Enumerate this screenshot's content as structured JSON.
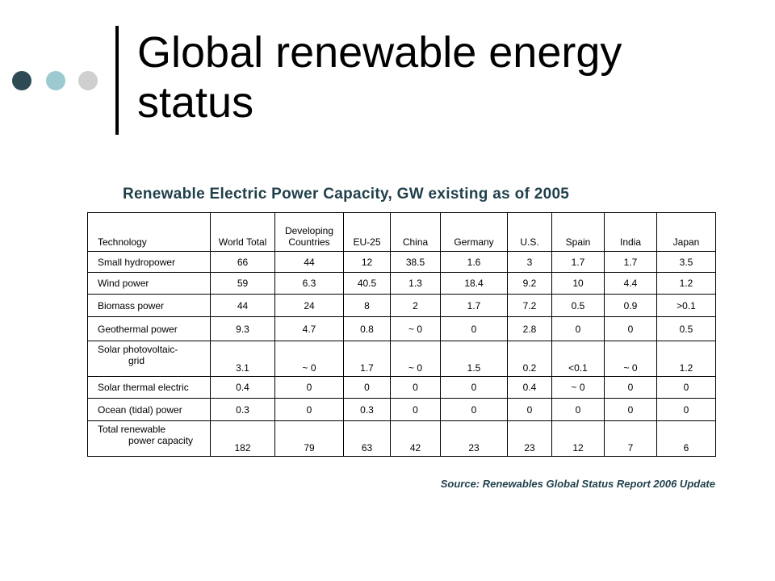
{
  "colors": {
    "dot1": "#2e4b55",
    "dot2": "#9dc9d0",
    "dot3": "#cfcfcf",
    "accent_text": "#1f3f4a"
  },
  "title": "Global renewable energy status",
  "subtitle": "Renewable Electric Power Capacity, GW existing as of 2005",
  "table": {
    "headers": [
      "Technology",
      "World Total",
      "Developing Countries",
      "EU-25",
      "China",
      "Germany",
      "U.S.",
      "Spain",
      "India",
      "Japan"
    ],
    "rows": [
      {
        "tech": "Small hydropower",
        "values": [
          "66",
          "44",
          "12",
          "38.5",
          "1.6",
          "3",
          "1.7",
          "1.7",
          "3.5"
        ]
      },
      {
        "tech": "Wind power",
        "values": [
          "59",
          "6.3",
          "40.5",
          "1.3",
          "18.4",
          "9.2",
          "10",
          "4.4",
          "1.2"
        ]
      },
      {
        "tech": "Biomass power",
        "values": [
          "44",
          "24",
          "8",
          "2",
          "1.7",
          "7.2",
          "0.5",
          "0.9",
          ">0.1"
        ]
      },
      {
        "tech": "Geothermal power",
        "values": [
          "9.3",
          "4.7",
          "0.8",
          "~ 0",
          "0",
          "2.8",
          "0",
          "0",
          "0.5"
        ]
      },
      {
        "tech_line1": "Solar photovoltaic-",
        "tech_line2": "grid",
        "values": [
          "3.1",
          "~ 0",
          "1.7",
          "~ 0",
          "1.5",
          "0.2",
          "<0.1",
          "~ 0",
          "1.2"
        ]
      },
      {
        "tech": "Solar thermal electric",
        "values": [
          "0.4",
          "0",
          "0",
          "0",
          "0",
          "0.4",
          "~ 0",
          "0",
          "0"
        ]
      },
      {
        "tech": "Ocean (tidal) power",
        "values": [
          "0.3",
          "0",
          "0.3",
          "0",
          "0",
          "0",
          "0",
          "0",
          "0"
        ]
      },
      {
        "tech_line1": "Total renewable",
        "tech_line2": "power capacity",
        "values": [
          "182",
          "79",
          "63",
          "42",
          "23",
          "23",
          "12",
          "7",
          "6"
        ]
      }
    ]
  },
  "source": "Source: Renewables Global Status Report 2006 Update"
}
